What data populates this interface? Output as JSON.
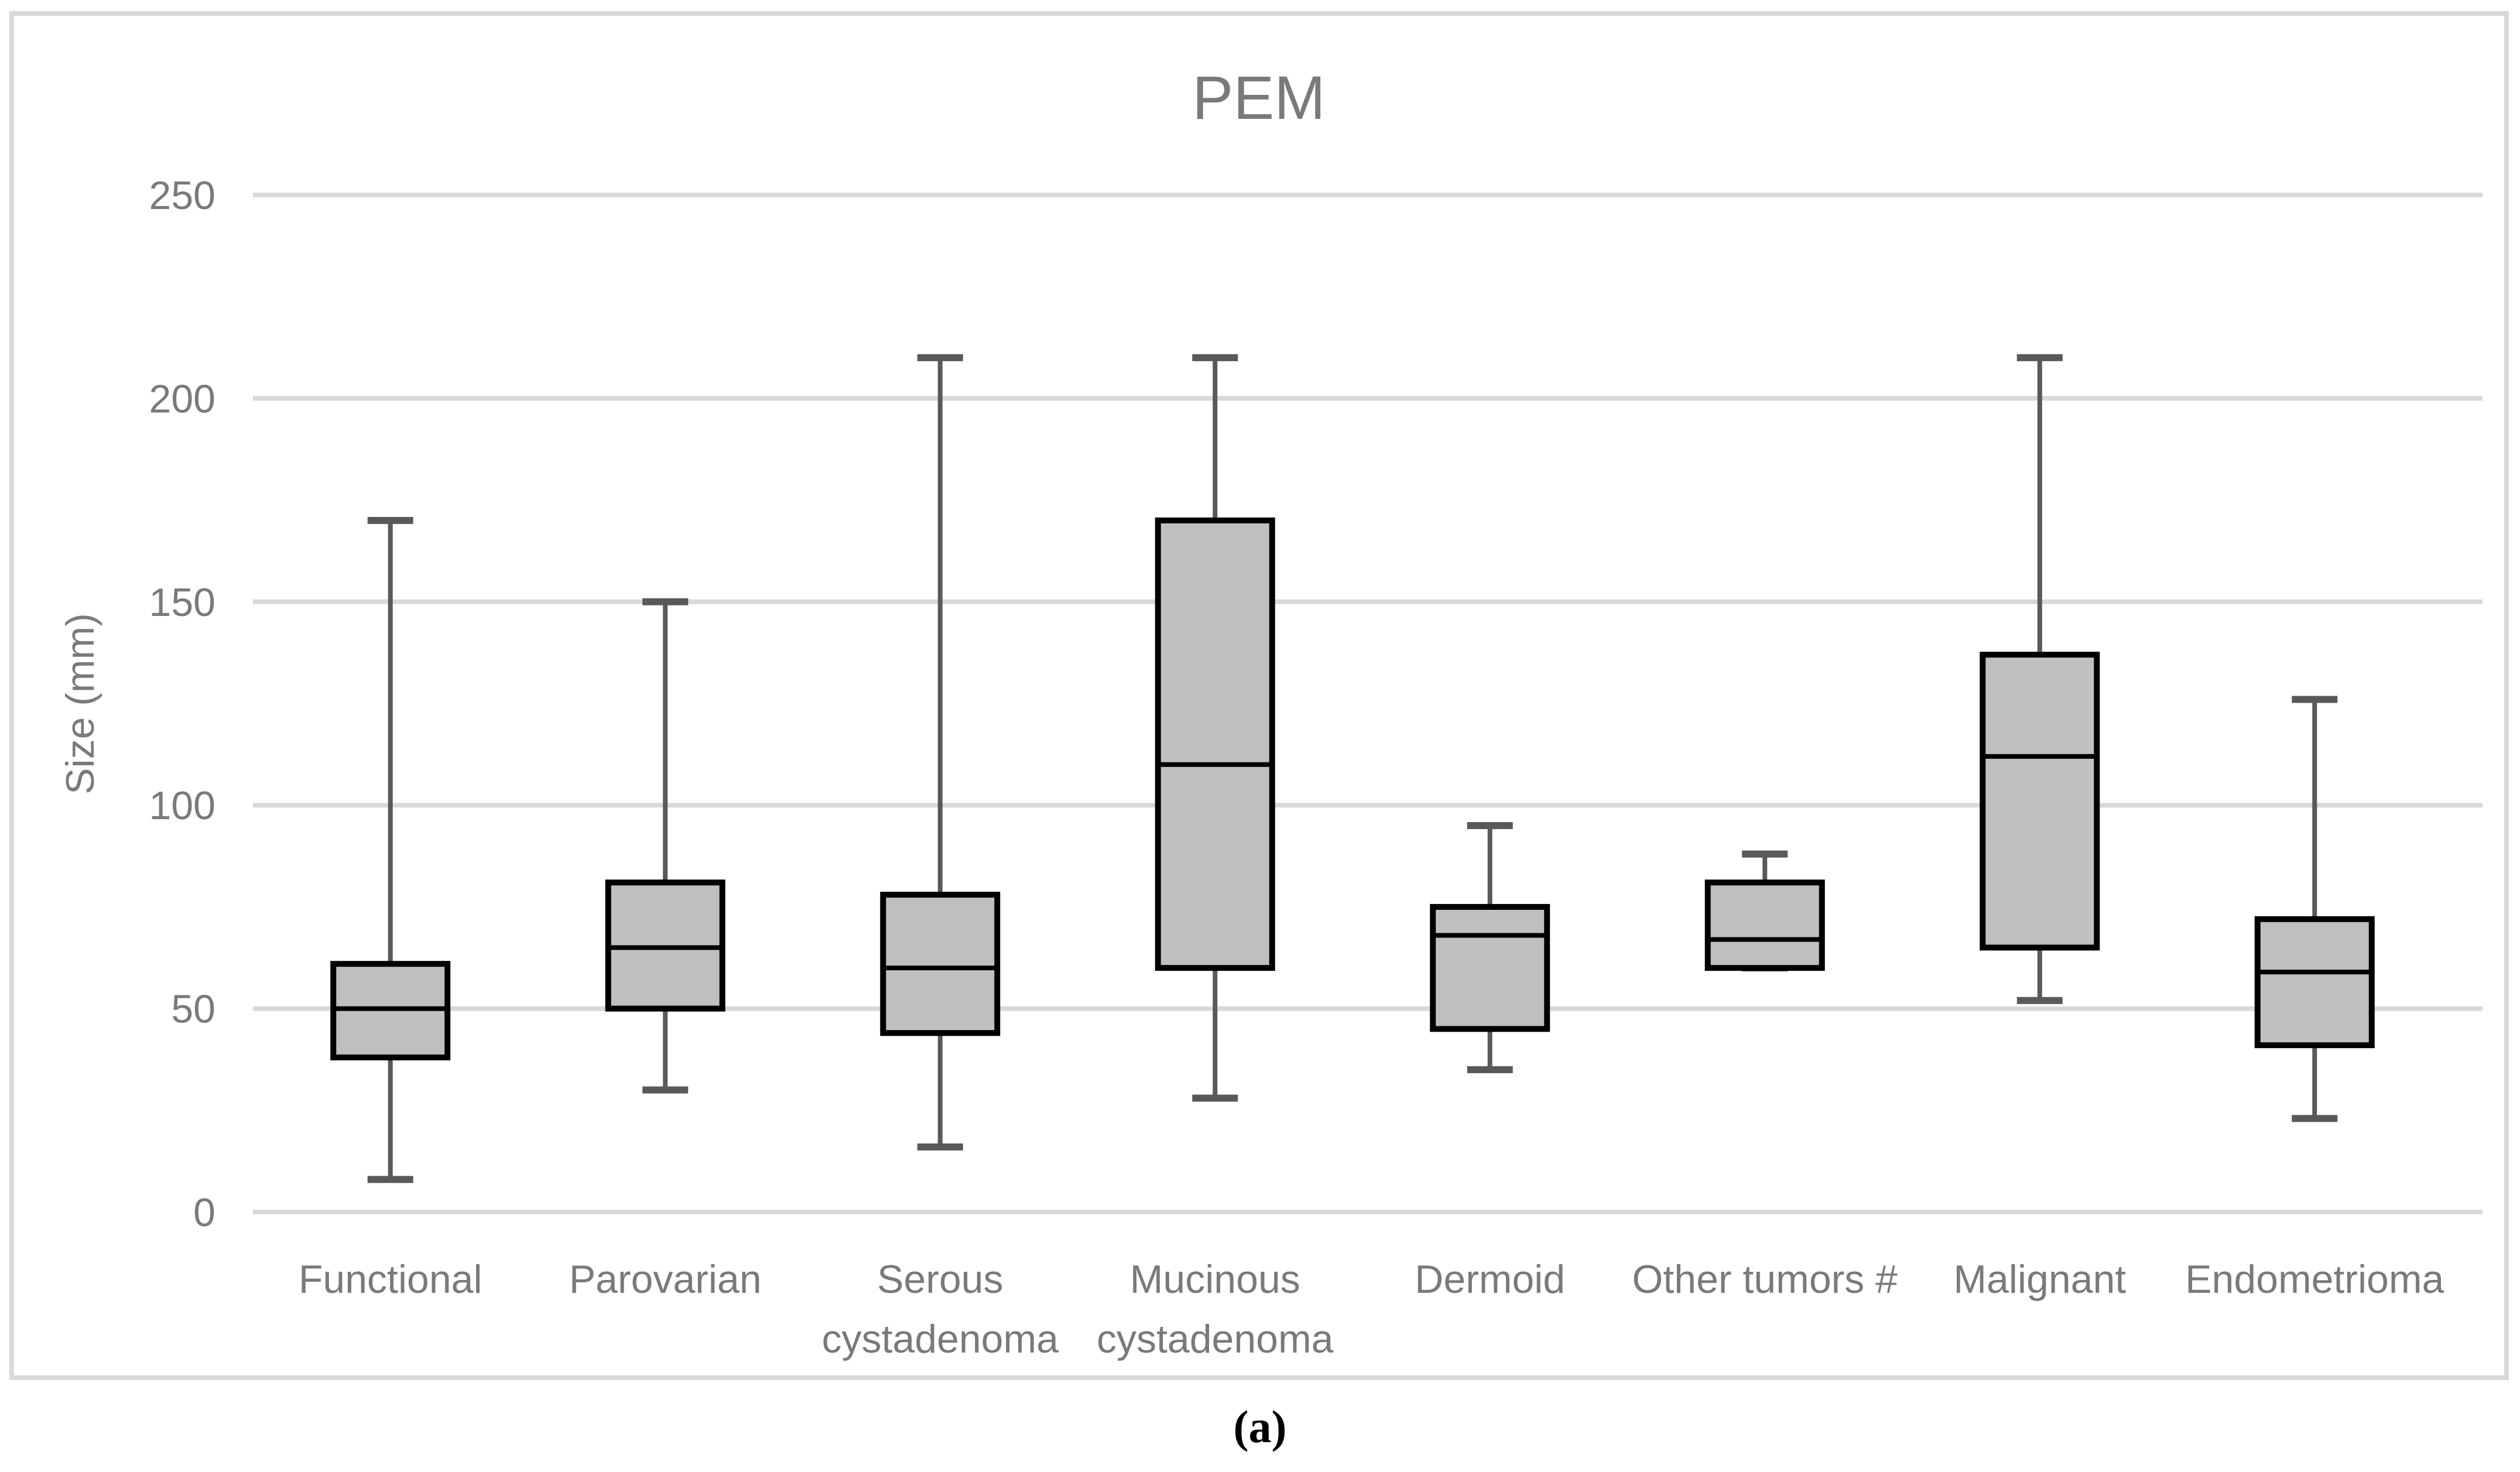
{
  "figure": {
    "caption": "(a)"
  },
  "chart_data": {
    "type": "box",
    "title": "PEM",
    "ylabel": "Size (mm)",
    "xlabel": "",
    "ylim": [
      0,
      250
    ],
    "yticks": [
      0,
      50,
      100,
      150,
      200,
      250
    ],
    "grid": true,
    "legend": false,
    "categories": [
      "Functional",
      "Parovarian",
      "Serous\ncystadenoma",
      "Mucinous\ncystadenoma",
      "Dermoid",
      "Other tumors #",
      "Malignant",
      "Endometrioma"
    ],
    "series": [
      {
        "name": "Functional",
        "min": 8,
        "q1": 38,
        "median": 50,
        "q3": 61,
        "max": 170
      },
      {
        "name": "Parovarian",
        "min": 30,
        "q1": 50,
        "median": 65,
        "q3": 81,
        "max": 150
      },
      {
        "name": "Serous cystadenoma",
        "min": 16,
        "q1": 44,
        "median": 60,
        "q3": 78,
        "max": 210
      },
      {
        "name": "Mucinous cystadenoma",
        "min": 28,
        "q1": 60,
        "median": 110,
        "q3": 170,
        "max": 210
      },
      {
        "name": "Dermoid",
        "min": 35,
        "q1": 45,
        "median": 68,
        "q3": 75,
        "max": 95
      },
      {
        "name": "Other tumors #",
        "min": 60,
        "q1": 60,
        "median": 67,
        "q3": 81,
        "max": 88
      },
      {
        "name": "Malignant",
        "min": 52,
        "q1": 65,
        "median": 112,
        "q3": 137,
        "max": 210
      },
      {
        "name": "Endometrioma",
        "min": 23,
        "q1": 41,
        "median": 59,
        "q3": 72,
        "max": 126
      }
    ],
    "colors": {
      "box_fill": "#bfbfbf",
      "box_border": "#000000",
      "median": "#000000",
      "whisker": "#595959",
      "gridline": "#d9d9d9",
      "frame_border": "#d9d9d9",
      "text": "#7a7a7a",
      "caption": "#000000",
      "background": "#ffffff"
    }
  }
}
